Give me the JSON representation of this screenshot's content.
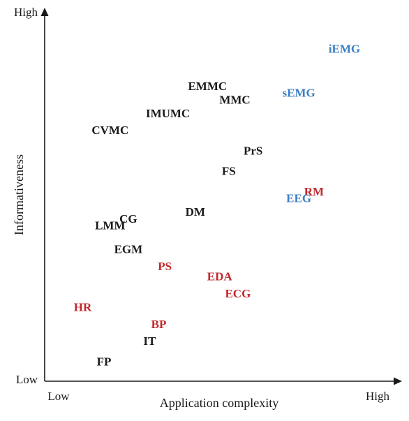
{
  "chart_data": {
    "type": "scatter",
    "xlabel": "Application complexity",
    "ylabel": "Informativeness",
    "x_tick_labels": {
      "low": "Low",
      "high": "High"
    },
    "y_tick_labels": {
      "low": "Low",
      "high": "High"
    },
    "xlim": [
      0,
      100
    ],
    "ylim": [
      0,
      100
    ],
    "grid": false,
    "legend": "none",
    "colors": {
      "black": "#1a1a1a",
      "red": "#c0282d",
      "blue": "#3a7fc1"
    },
    "points": [
      {
        "label": "iEMG",
        "x": 93,
        "y": 95,
        "color": "blue"
      },
      {
        "label": "sEMG",
        "x": 78,
        "y": 82,
        "color": "blue"
      },
      {
        "label": "EMMC",
        "x": 48,
        "y": 84,
        "color": "black"
      },
      {
        "label": "MMC",
        "x": 57,
        "y": 80,
        "color": "black"
      },
      {
        "label": "IMUMC",
        "x": 35,
        "y": 76,
        "color": "black"
      },
      {
        "label": "CVMC",
        "x": 16,
        "y": 71,
        "color": "black"
      },
      {
        "label": "PrS",
        "x": 63,
        "y": 65,
        "color": "black"
      },
      {
        "label": "FS",
        "x": 55,
        "y": 59,
        "color": "black"
      },
      {
        "label": "RM",
        "x": 83,
        "y": 53,
        "color": "red"
      },
      {
        "label": "EEG",
        "x": 78,
        "y": 51,
        "color": "blue"
      },
      {
        "label": "DM",
        "x": 44,
        "y": 47,
        "color": "black"
      },
      {
        "label": "CG",
        "x": 22,
        "y": 45,
        "color": "black"
      },
      {
        "label": "LMM",
        "x": 16,
        "y": 43,
        "color": "black"
      },
      {
        "label": "EGM",
        "x": 22,
        "y": 36,
        "color": "black"
      },
      {
        "label": "PS",
        "x": 34,
        "y": 31,
        "color": "red"
      },
      {
        "label": "EDA",
        "x": 52,
        "y": 28,
        "color": "red"
      },
      {
        "label": "ECG",
        "x": 58,
        "y": 23,
        "color": "red"
      },
      {
        "label": "HR",
        "x": 7,
        "y": 19,
        "color": "red"
      },
      {
        "label": "BP",
        "x": 32,
        "y": 14,
        "color": "red"
      },
      {
        "label": "IT",
        "x": 29,
        "y": 9,
        "color": "black"
      },
      {
        "label": "FP",
        "x": 14,
        "y": 3,
        "color": "black"
      }
    ]
  }
}
